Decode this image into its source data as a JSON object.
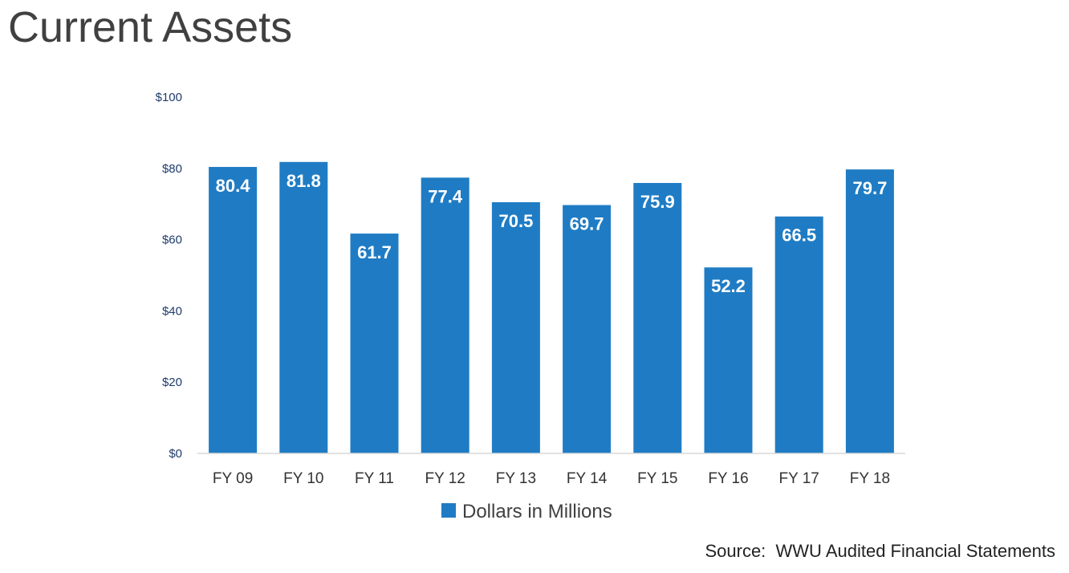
{
  "header": {
    "title": "Current Assets"
  },
  "footer": {
    "source": "Source:  WWU Audited Financial Statements"
  },
  "colors": {
    "bar": "#1f7cc4",
    "axis_label": "#1f3b6b",
    "category_label": "#333333",
    "axis_line": "#d9d9d9",
    "data_label": "#ffffff"
  },
  "chart_data": {
    "type": "bar",
    "title": "",
    "xlabel": "",
    "ylabel": "",
    "categories": [
      "FY 09",
      "FY 10",
      "FY 11",
      "FY 12",
      "FY 13",
      "FY 14",
      "FY 15",
      "FY 16",
      "FY 17",
      "FY 18"
    ],
    "series": [
      {
        "name": "Dollars in Millions",
        "values": [
          80.4,
          81.8,
          61.7,
          77.4,
          70.5,
          69.7,
          75.9,
          52.2,
          66.5,
          79.7
        ]
      }
    ],
    "ylim": [
      0,
      100
    ],
    "yticks": [
      0,
      20,
      40,
      60,
      80,
      100
    ],
    "ytick_labels": [
      "$0",
      "$20",
      "$40",
      "$60",
      "$80",
      "$100"
    ],
    "data_labels": true,
    "grid": false,
    "legend": "bottom"
  }
}
